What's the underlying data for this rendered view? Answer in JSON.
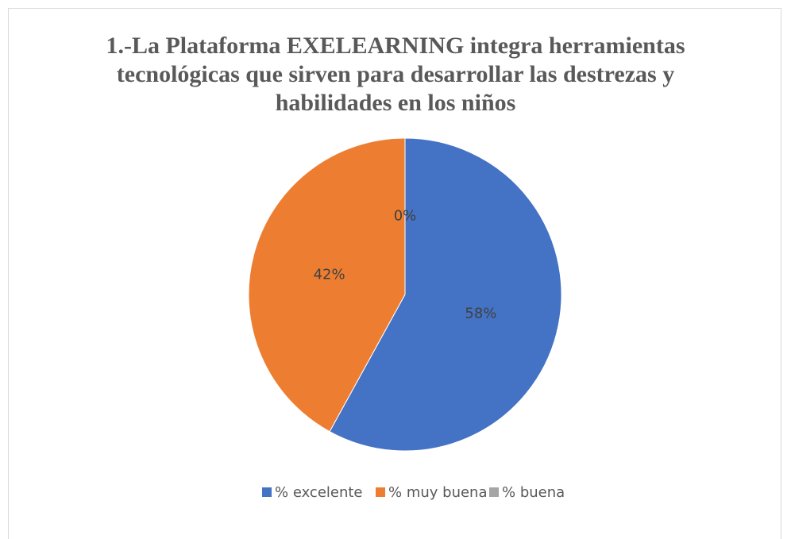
{
  "chart_data": {
    "type": "pie",
    "title": "1.-La Plataforma EXELEARNING integra herramientas tecnológicas que sirven para desarrollar las destrezas y habilidades en los niños",
    "categories": [
      "% excelente",
      "% muy buena",
      "% buena"
    ],
    "values": [
      58,
      42,
      0
    ],
    "value_labels": [
      "58%",
      "42%",
      "0%"
    ],
    "colors": [
      "#4472c4",
      "#ed7d31",
      "#a5a5a5"
    ],
    "legend": "bottom"
  }
}
